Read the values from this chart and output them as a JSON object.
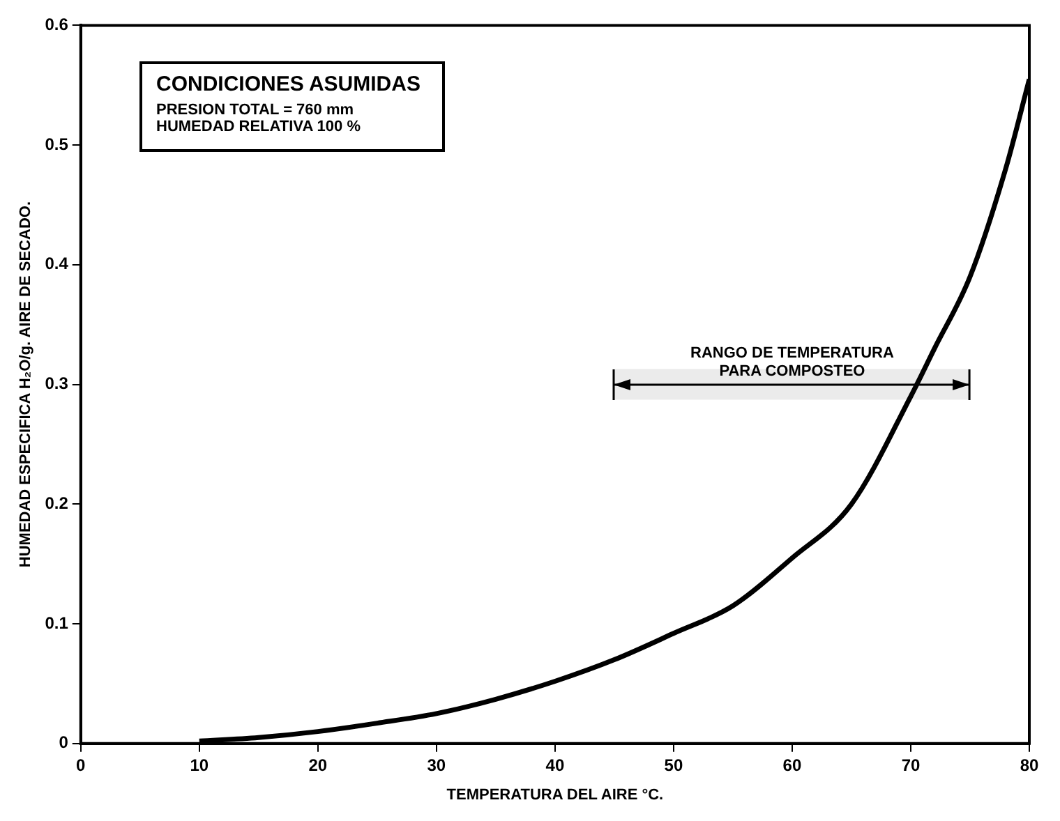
{
  "chart_data": {
    "type": "line",
    "xlabel": "TEMPERATURA DEL AIRE °C.",
    "ylabel": "HUMEDAD ESPECIFICA H₂O/g. AIRE DE SECADO.",
    "annotations": [
      "CONDICIONES ASUMIDAS",
      "PRESION TOTAL = 760 mm",
      "HUMEDAD RELATIVA 100 %"
    ],
    "bands": [
      {
        "axis": "x",
        "from": 45,
        "to": 75,
        "label": "RANGO DE TEMPERATURA PARA COMPOSTEO",
        "color": "#000000"
      }
    ],
    "series": [
      {
        "color": "#000000",
        "x": [
          10,
          15,
          20,
          25,
          30,
          35,
          40,
          45,
          50,
          55,
          60,
          65,
          70,
          72,
          75,
          78,
          80
        ],
        "values": [
          0.002,
          0.005,
          0.01,
          0.017,
          0.025,
          0.037,
          0.052,
          0.07,
          0.092,
          0.115,
          0.155,
          0.2,
          0.29,
          0.33,
          0.39,
          0.48,
          0.555
        ]
      }
    ],
    "xlim": [
      0,
      80
    ],
    "xticks": [
      0,
      10,
      20,
      30,
      40,
      50,
      60,
      70,
      80
    ],
    "ylim": [
      0,
      0.6
    ],
    "yticks": [
      0,
      0.1,
      0.2,
      0.3,
      0.4,
      0.5,
      0.6
    ],
    "grid": false,
    "legend": false,
    "marker": "none",
    "line_style": "solid"
  }
}
